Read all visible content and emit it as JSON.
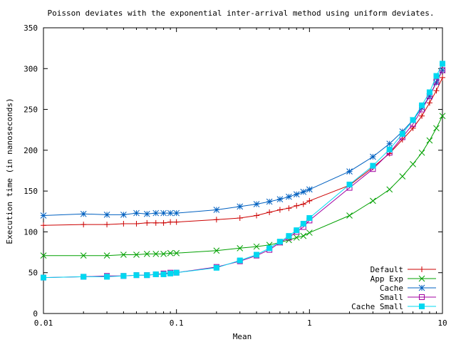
{
  "chart_data": {
    "type": "line",
    "title": "Poisson deviates with the exponential inter-arrival method using uniform deviates.",
    "xlabel": "Mean",
    "ylabel": "Execution time (in nanoseconds)",
    "xscale": "log",
    "xlim": [
      0.01,
      10
    ],
    "ylim": [
      0,
      350
    ],
    "x_ticks": [
      0.01,
      0.1,
      1,
      10
    ],
    "x_tick_labels": [
      "0.01",
      "0.1",
      "1",
      "10"
    ],
    "y_ticks": [
      0,
      50,
      100,
      150,
      200,
      250,
      300,
      350
    ],
    "y_tick_labels": [
      "0",
      "50",
      "100",
      "150",
      "200",
      "250",
      "300",
      "350"
    ],
    "grid": false,
    "legend_position": "bottom-right",
    "series": [
      {
        "name": "Default",
        "color": "#cc0000",
        "marker": "plus",
        "x": [
          0.01,
          0.02,
          0.03,
          0.04,
          0.05,
          0.06,
          0.07,
          0.08,
          0.09,
          0.1,
          0.2,
          0.3,
          0.4,
          0.5,
          0.6,
          0.7,
          0.8,
          0.9,
          1,
          2,
          3,
          4,
          5,
          6,
          7,
          8,
          9,
          10
        ],
        "y": [
          108,
          109,
          109,
          110,
          110,
          111,
          111,
          111,
          112,
          112,
          115,
          117,
          120,
          124,
          127,
          129,
          132,
          134,
          138,
          157,
          179,
          196,
          213,
          227,
          242,
          258,
          273,
          289
        ]
      },
      {
        "name": "App Exp",
        "color": "#00a000",
        "marker": "x",
        "x": [
          0.01,
          0.02,
          0.03,
          0.04,
          0.05,
          0.06,
          0.07,
          0.08,
          0.09,
          0.1,
          0.2,
          0.3,
          0.4,
          0.5,
          0.6,
          0.7,
          0.8,
          0.9,
          1,
          2,
          3,
          4,
          5,
          6,
          7,
          8,
          9,
          10
        ],
        "y": [
          71,
          71,
          71,
          72,
          72,
          73,
          73,
          73,
          74,
          74,
          77,
          80,
          82,
          84,
          87,
          90,
          93,
          95,
          99,
          120,
          138,
          152,
          168,
          183,
          197,
          212,
          227,
          242
        ]
      },
      {
        "name": "Cache",
        "color": "#0060c0",
        "marker": "star",
        "x": [
          0.01,
          0.02,
          0.03,
          0.04,
          0.05,
          0.06,
          0.07,
          0.08,
          0.09,
          0.1,
          0.2,
          0.3,
          0.4,
          0.5,
          0.6,
          0.7,
          0.8,
          0.9,
          1,
          2,
          3,
          4,
          5,
          6,
          7,
          8,
          9,
          10
        ],
        "y": [
          120,
          122,
          121,
          121,
          123,
          122,
          123,
          123,
          123,
          123,
          127,
          131,
          134,
          137,
          140,
          143,
          146,
          149,
          152,
          174,
          192,
          208,
          223,
          237,
          252,
          266,
          283,
          298
        ]
      },
      {
        "name": "Small",
        "color": "#a000a0",
        "marker": "square-open",
        "x": [
          0.01,
          0.02,
          0.03,
          0.04,
          0.05,
          0.06,
          0.07,
          0.08,
          0.09,
          0.1,
          0.2,
          0.3,
          0.4,
          0.5,
          0.6,
          0.7,
          0.8,
          0.9,
          1,
          2,
          3,
          4,
          5,
          6,
          7,
          8,
          9,
          10
        ],
        "y": [
          44,
          45,
          46,
          46,
          47,
          47,
          48,
          49,
          50,
          50,
          57,
          64,
          71,
          78,
          87,
          93,
          100,
          106,
          114,
          154,
          177,
          197,
          216,
          232,
          250,
          266,
          284,
          298
        ]
      },
      {
        "name": "Cache Small",
        "color": "#00d8f0",
        "marker": "square-filled",
        "x": [
          0.01,
          0.02,
          0.03,
          0.04,
          0.05,
          0.06,
          0.07,
          0.08,
          0.09,
          0.1,
          0.2,
          0.3,
          0.4,
          0.5,
          0.6,
          0.7,
          0.8,
          0.9,
          1,
          2,
          3,
          4,
          5,
          6,
          7,
          8,
          9,
          10
        ],
        "y": [
          44,
          45,
          45,
          46,
          47,
          47,
          48,
          48,
          49,
          50,
          56,
          65,
          72,
          80,
          88,
          95,
          102,
          110,
          117,
          158,
          181,
          201,
          220,
          237,
          255,
          271,
          291,
          306
        ]
      }
    ]
  }
}
